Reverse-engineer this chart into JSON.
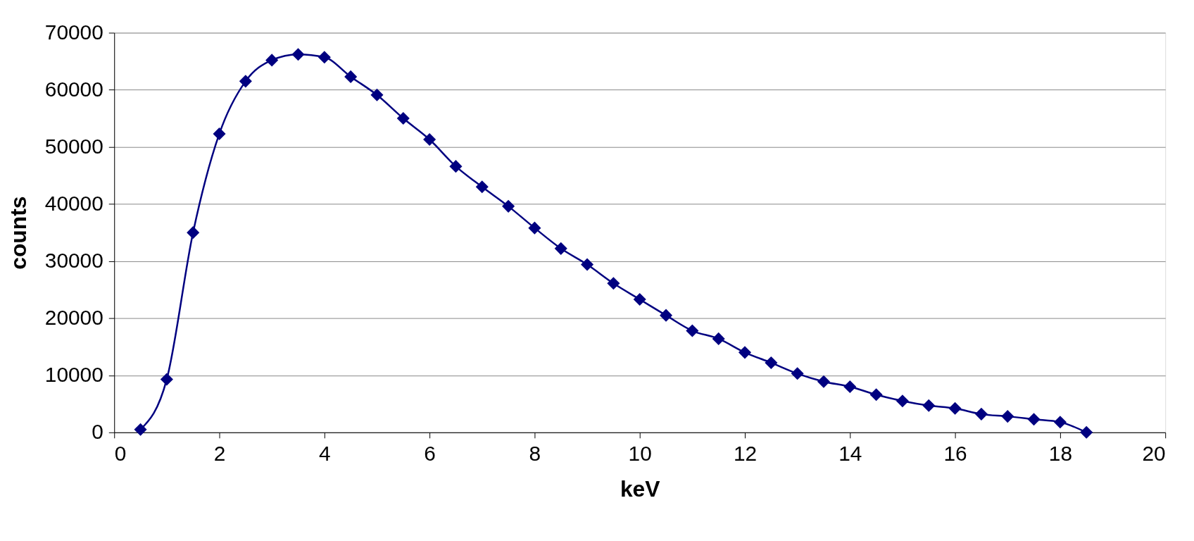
{
  "chart_data": {
    "type": "line",
    "xlabel": "keV",
    "ylabel": "counts",
    "x": [
      0.5,
      1,
      1.5,
      2,
      2.5,
      3,
      3.5,
      4,
      4.5,
      5,
      5.5,
      6,
      6.5,
      7,
      7.5,
      8,
      8.5,
      9,
      9.5,
      10,
      10.5,
      11,
      11.5,
      12,
      12.5,
      13,
      13.5,
      14,
      14.5,
      15,
      15.5,
      16,
      16.5,
      17,
      17.5,
      18,
      18.5
    ],
    "series": [
      {
        "color": "#000080",
        "values": [
          500,
          9300,
          35000,
          52300,
          61500,
          65200,
          66200,
          65700,
          62300,
          59100,
          55000,
          51300,
          46600,
          43000,
          39600,
          35800,
          32200,
          29400,
          26100,
          23300,
          20500,
          17800,
          16400,
          14000,
          12200,
          10300,
          8900,
          8000,
          6600,
          5500,
          4700,
          4200,
          3200,
          2800,
          2300,
          1800,
          0
        ]
      }
    ],
    "xlim": [
      0,
      20
    ],
    "xticks": [
      0,
      2,
      4,
      6,
      8,
      10,
      12,
      14,
      16,
      18,
      20
    ],
    "ylim": [
      0,
      70000
    ],
    "yticks": [
      0,
      10000,
      20000,
      30000,
      40000,
      50000,
      60000,
      70000
    ],
    "grid": "y",
    "marker": "diamond",
    "line_style": "solid"
  }
}
